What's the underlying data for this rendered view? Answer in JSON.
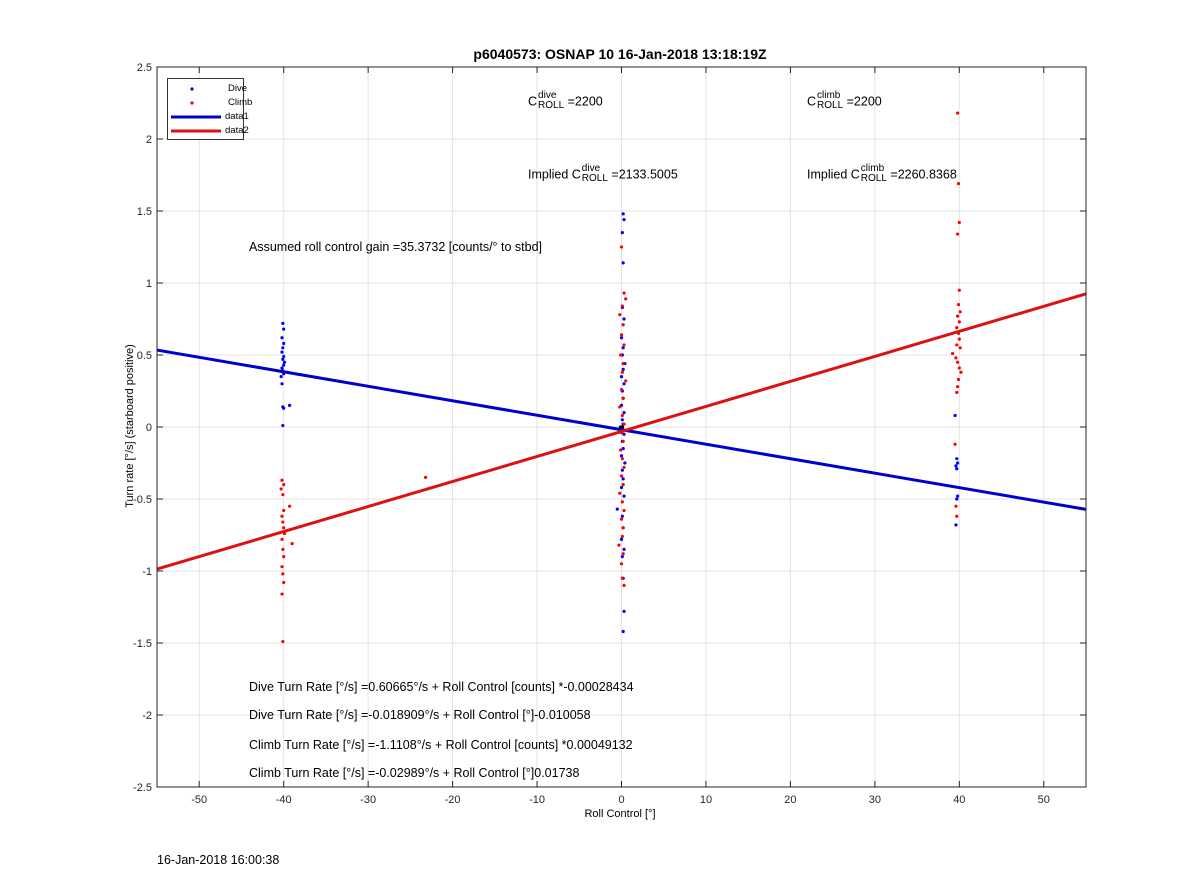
{
  "chart_data": {
    "type": "scatter",
    "title": "p6040573: OSNAP 10 16-Jan-2018 13:18:19Z",
    "xlabel": "Roll Control [°]",
    "ylabel": "Turn rate [°/s] (starboard positive)",
    "xlim": [
      -55,
      55
    ],
    "ylim": [
      -2.5,
      2.5
    ],
    "xticks": [
      -50,
      -40,
      -30,
      -20,
      -10,
      0,
      10,
      20,
      30,
      40,
      50
    ],
    "yticks": [
      -2.5,
      -2,
      -1.5,
      -1,
      -0.5,
      0,
      0.5,
      1,
      1.5,
      2,
      2.5
    ],
    "xtick_labels": [
      "-50",
      "-40",
      "-30",
      "-20",
      "-10",
      "0",
      "10",
      "20",
      "30",
      "40",
      "50"
    ],
    "ytick_labels": [
      "-2.5",
      "-2",
      "-1.5",
      "-1",
      "-0.5",
      "0",
      "0.5",
      "1",
      "1.5",
      "2",
      "2.5"
    ],
    "grid": true,
    "legend_position": "top-left",
    "colors": {
      "dive": "#0000ff",
      "climb": "#ff0000",
      "data1": "#0000cc",
      "data2": "#dd1111"
    },
    "series": [
      {
        "name": "Dive",
        "marker": "dot",
        "points": [
          [
            -40.1,
            0.72
          ],
          [
            -40.0,
            0.68
          ],
          [
            -40.2,
            0.62
          ],
          [
            -40.0,
            0.58
          ],
          [
            -40.1,
            0.55
          ],
          [
            -40.2,
            0.52
          ],
          [
            -40.0,
            0.49
          ],
          [
            -40.1,
            0.47
          ],
          [
            -39.9,
            0.45
          ],
          [
            -40.0,
            0.43
          ],
          [
            -40.2,
            0.41
          ],
          [
            -40.1,
            0.39
          ],
          [
            -40.0,
            0.37
          ],
          [
            -40.3,
            0.35
          ],
          [
            -40.2,
            0.3
          ],
          [
            -40.1,
            0.14
          ],
          [
            -40.0,
            0.13
          ],
          [
            -39.3,
            0.15
          ],
          [
            -40.1,
            0.01
          ],
          [
            0.2,
            1.48
          ],
          [
            0.3,
            1.44
          ],
          [
            0.1,
            1.35
          ],
          [
            0.2,
            1.14
          ],
          [
            0.1,
            0.83
          ],
          [
            0.3,
            0.75
          ],
          [
            0.0,
            0.62
          ],
          [
            0.2,
            0.55
          ],
          [
            0.1,
            0.5
          ],
          [
            0.4,
            0.44
          ],
          [
            0.2,
            0.4
          ],
          [
            0.0,
            0.35
          ],
          [
            0.3,
            0.3
          ],
          [
            0.1,
            0.25
          ],
          [
            0.2,
            0.2
          ],
          [
            0.0,
            0.15
          ],
          [
            0.3,
            0.1
          ],
          [
            0.1,
            0.05
          ],
          [
            0.2,
            0.02
          ],
          [
            0.0,
            -0.02
          ],
          [
            0.3,
            -0.05
          ],
          [
            0.1,
            -0.1
          ],
          [
            0.2,
            -0.15
          ],
          [
            0.0,
            -0.2
          ],
          [
            0.4,
            -0.25
          ],
          [
            0.1,
            -0.3
          ],
          [
            0.2,
            -0.36
          ],
          [
            0.0,
            -0.42
          ],
          [
            0.3,
            -0.48
          ],
          [
            -0.5,
            -0.57
          ],
          [
            0.1,
            -0.62
          ],
          [
            0.2,
            -0.7
          ],
          [
            0.0,
            -0.78
          ],
          [
            0.3,
            -0.85
          ],
          [
            0.1,
            -0.9
          ],
          [
            0.2,
            -1.05
          ],
          [
            0.3,
            -1.28
          ],
          [
            0.2,
            -1.42
          ],
          [
            39.5,
            0.08
          ],
          [
            39.7,
            -0.22
          ],
          [
            39.8,
            -0.25
          ],
          [
            39.6,
            -0.27
          ],
          [
            39.7,
            -0.29
          ],
          [
            39.8,
            -0.48
          ],
          [
            39.7,
            -0.5
          ],
          [
            39.6,
            -0.68
          ]
        ]
      },
      {
        "name": "Climb",
        "marker": "dot",
        "points": [
          [
            -40.2,
            -0.37
          ],
          [
            -40.0,
            -0.4
          ],
          [
            -40.3,
            -0.43
          ],
          [
            -40.1,
            -0.47
          ],
          [
            -39.3,
            -0.55
          ],
          [
            -40.0,
            -0.58
          ],
          [
            -40.2,
            -0.62
          ],
          [
            -40.1,
            -0.66
          ],
          [
            -40.0,
            -0.7
          ],
          [
            -39.9,
            -0.74
          ],
          [
            -40.2,
            -0.78
          ],
          [
            -39.0,
            -0.81
          ],
          [
            -40.1,
            -0.85
          ],
          [
            -40.0,
            -0.9
          ],
          [
            -40.2,
            -0.97
          ],
          [
            -40.1,
            -1.02
          ],
          [
            -40.0,
            -1.08
          ],
          [
            -40.2,
            -1.16
          ],
          [
            -40.1,
            -1.49
          ],
          [
            -23.2,
            -0.35
          ],
          [
            0.0,
            1.25
          ],
          [
            0.3,
            0.93
          ],
          [
            0.5,
            0.89
          ],
          [
            0.1,
            0.84
          ],
          [
            -0.2,
            0.78
          ],
          [
            0.2,
            0.71
          ],
          [
            0.0,
            0.64
          ],
          [
            0.3,
            0.57
          ],
          [
            -0.1,
            0.5
          ],
          [
            0.2,
            0.44
          ],
          [
            0.1,
            0.38
          ],
          [
            0.5,
            0.32
          ],
          [
            0.0,
            0.26
          ],
          [
            0.2,
            0.2
          ],
          [
            -0.2,
            0.14
          ],
          [
            0.1,
            0.08
          ],
          [
            0.3,
            0.02
          ],
          [
            0.0,
            -0.04
          ],
          [
            0.2,
            -0.1
          ],
          [
            -0.1,
            -0.16
          ],
          [
            0.1,
            -0.22
          ],
          [
            0.3,
            -0.28
          ],
          [
            0.0,
            -0.34
          ],
          [
            0.2,
            -0.4
          ],
          [
            -0.2,
            -0.46
          ],
          [
            0.1,
            -0.52
          ],
          [
            0.3,
            -0.58
          ],
          [
            0.0,
            -0.64
          ],
          [
            0.2,
            -0.7
          ],
          [
            0.1,
            -0.76
          ],
          [
            -0.3,
            -0.82
          ],
          [
            0.2,
            -0.88
          ],
          [
            0.0,
            -0.95
          ],
          [
            0.1,
            -1.05
          ],
          [
            0.3,
            -1.1
          ],
          [
            39.8,
            2.18
          ],
          [
            39.9,
            1.69
          ],
          [
            40.0,
            1.42
          ],
          [
            39.8,
            1.34
          ],
          [
            40.0,
            0.95
          ],
          [
            39.9,
            0.85
          ],
          [
            40.1,
            0.8
          ],
          [
            39.8,
            0.77
          ],
          [
            40.0,
            0.73
          ],
          [
            39.7,
            0.69
          ],
          [
            39.9,
            0.65
          ],
          [
            40.0,
            0.61
          ],
          [
            39.7,
            0.57
          ],
          [
            40.1,
            0.55
          ],
          [
            39.2,
            0.51
          ],
          [
            39.6,
            0.48
          ],
          [
            39.8,
            0.45
          ],
          [
            40.0,
            0.41
          ],
          [
            40.2,
            0.38
          ],
          [
            39.9,
            0.33
          ],
          [
            39.8,
            0.28
          ],
          [
            39.7,
            0.24
          ],
          [
            39.5,
            -0.12
          ],
          [
            39.6,
            -0.55
          ],
          [
            39.7,
            -0.62
          ]
        ]
      },
      {
        "name": "data1",
        "type": "line",
        "x": [
          -55,
          55
        ],
        "y": [
          0.5342,
          -0.572
        ]
      },
      {
        "name": "data2",
        "type": "line",
        "x": [
          -55,
          55
        ],
        "y": [
          -0.9868,
          0.925
        ]
      }
    ],
    "annotations": {
      "c_dive": {
        "pre": "C",
        "sup": "dive",
        "sub": "ROLL",
        "post": " =2200"
      },
      "c_climb": {
        "pre": "C",
        "sup": "climb",
        "sub": "ROLL",
        "post": " =2200"
      },
      "implied_dive": {
        "pre": "Implied C",
        "sup": "dive",
        "sub": "ROLL",
        "post": " =2133.5005"
      },
      "implied_climb": {
        "pre": "Implied C",
        "sup": "climb",
        "sub": "ROLL",
        "post": " =2260.8368"
      },
      "gain": "Assumed roll control gain =35.3732 [counts/° to stbd]",
      "eq1": "Dive Turn Rate [°/s] =0.60665°/s + Roll Control [counts] *-0.00028434",
      "eq2": "Dive Turn Rate [°/s] =-0.018909°/s + Roll Control [°]-0.010058",
      "eq3": "Climb Turn Rate [°/s] =-1.1108°/s + Roll Control [counts] *0.00049132",
      "eq4": "Climb Turn Rate [°/s] =-0.02989°/s + Roll Control [°]0.01738"
    }
  },
  "footer": {
    "timestamp": "16-Jan-2018 16:00:38"
  }
}
